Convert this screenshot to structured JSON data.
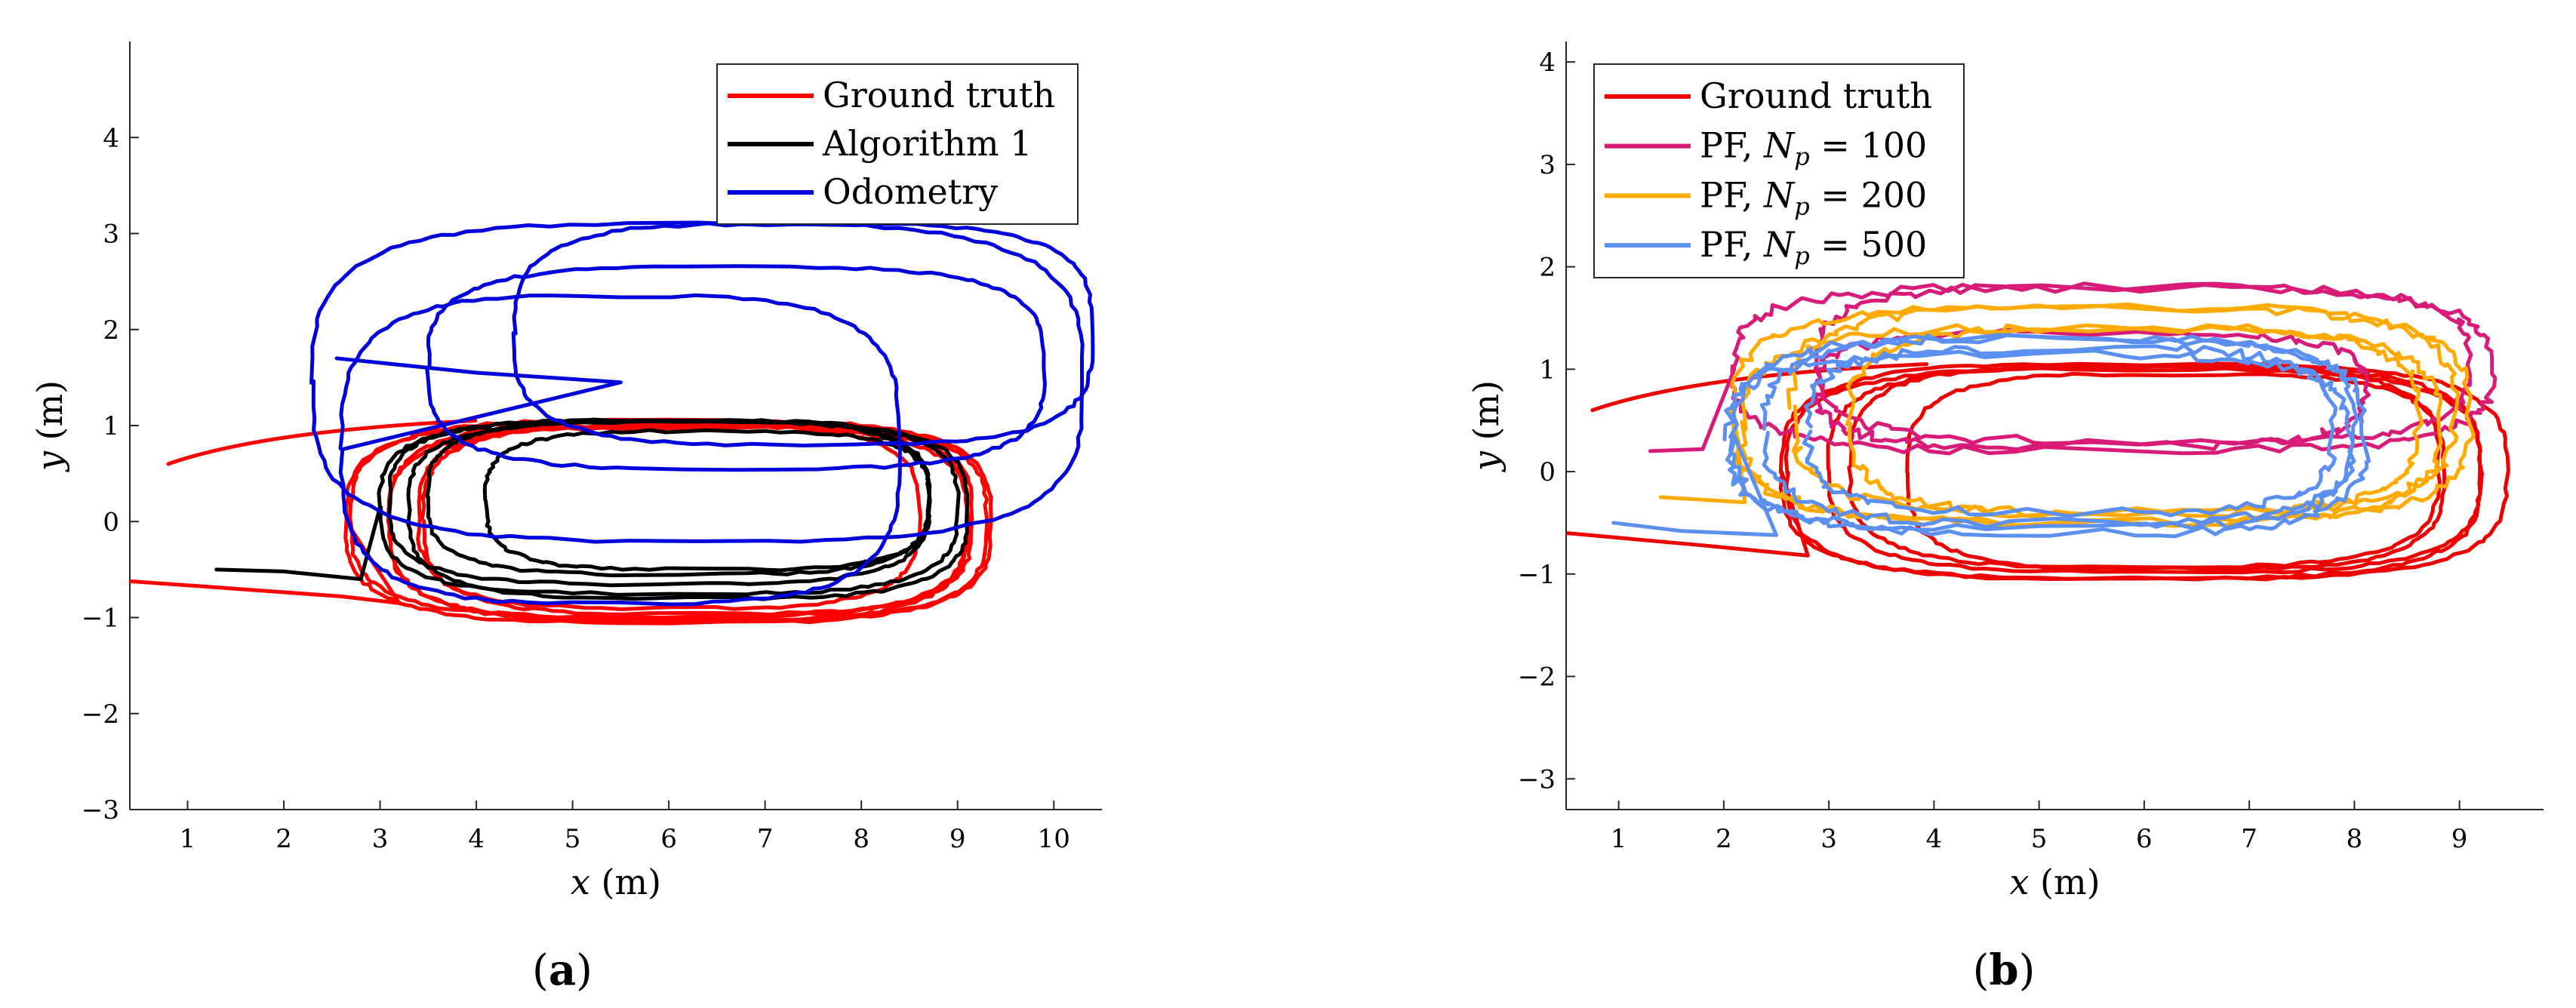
{
  "chart_data": [
    {
      "id": "a",
      "type": "line",
      "caption_letter": "a",
      "xlabel_var": "x",
      "xlabel_unit": " (m)",
      "ylabel_var": "y",
      "ylabel_unit": " (m)",
      "xlim": [
        0.4,
        10.5
      ],
      "ylim": [
        -3,
        5
      ],
      "xticks": [
        1,
        2,
        3,
        4,
        5,
        6,
        7,
        8,
        9,
        10
      ],
      "yticks": [
        -3,
        -2,
        -1,
        0,
        1,
        2,
        3,
        4
      ],
      "legend": {
        "position": "top-right"
      },
      "series": [
        {
          "name": "Ground truth",
          "name_parts": [
            "Ground truth"
          ],
          "color": "#ff0000",
          "entry": [
            [
              0.1,
              -0.6
            ],
            [
              1.5,
              -0.7
            ],
            [
              2.6,
              -0.78
            ],
            [
              3.2,
              -0.85
            ]
          ],
          "start": [
            0.8,
            0.6
          ],
          "loops": [
            {
              "cx": 6.0,
              "cy": 0.0,
              "rx": 3.35,
              "ry": 1.05
            },
            {
              "cx": 5.9,
              "cy": 0.03,
              "rx": 3.2,
              "ry": 1.02
            },
            {
              "cx": 6.2,
              "cy": 0.0,
              "rx": 3.1,
              "ry": 1.03
            },
            {
              "cx": 6.3,
              "cy": 0.02,
              "rx": 2.85,
              "ry": 0.98
            },
            {
              "cx": 6.0,
              "cy": 0.05,
              "rx": 2.6,
              "ry": 0.95
            },
            {
              "cx": 6.1,
              "cy": -0.02,
              "rx": 3.0,
              "ry": 1.0
            }
          ]
        },
        {
          "name": "Algorithm 1",
          "name_parts": [
            "Algorithm 1"
          ],
          "color": "#000000",
          "entry": [
            [
              1.3,
              -0.5
            ],
            [
              2.0,
              -0.52
            ],
            [
              2.8,
              -0.6
            ]
          ],
          "loops": [
            {
              "cx": 6.0,
              "cy": 0.15,
              "rx": 3.0,
              "ry": 0.9
            },
            {
              "cx": 5.9,
              "cy": 0.2,
              "rx": 2.8,
              "ry": 0.85
            },
            {
              "cx": 6.1,
              "cy": 0.25,
              "rx": 2.6,
              "ry": 0.8
            },
            {
              "cx": 6.2,
              "cy": 0.12,
              "rx": 2.9,
              "ry": 0.92
            },
            {
              "cx": 6.4,
              "cy": 0.22,
              "rx": 2.3,
              "ry": 0.72
            }
          ]
        },
        {
          "name": "Odometry",
          "name_parts": [
            "Odometry"
          ],
          "color": "#0000dd",
          "entry": [
            [
              2.55,
              1.7
            ],
            [
              4.0,
              1.55
            ],
            [
              5.5,
              1.45
            ]
          ],
          "loops": [
            {
              "cx": 5.5,
              "cy": 0.75,
              "rx": 2.9,
              "ry": 1.6
            },
            {
              "cx": 6.3,
              "cy": 1.45,
              "rx": 4.0,
              "ry": 1.65
            },
            {
              "cx": 7.4,
              "cy": 1.95,
              "rx": 3.0,
              "ry": 1.15
            },
            {
              "cx": 6.7,
              "cy": 1.6,
              "rx": 3.2,
              "ry": 1.05
            }
          ]
        }
      ]
    },
    {
      "id": "b",
      "type": "line",
      "caption_letter": "b",
      "xlabel_var": "x",
      "xlabel_unit": " (m)",
      "ylabel_var": "y",
      "ylabel_unit": " (m)",
      "xlim": [
        0.5,
        9.8
      ],
      "ylim": [
        -3.3,
        4.2
      ],
      "xticks": [
        1,
        2,
        3,
        4,
        5,
        6,
        7,
        8,
        9
      ],
      "yticks": [
        -3,
        -2,
        -1,
        0,
        1,
        2,
        3,
        4
      ],
      "legend": {
        "position": "top-left"
      },
      "series": [
        {
          "name": "Ground truth",
          "name_parts": [
            "Ground truth"
          ],
          "color": "#ee0000",
          "entry": [
            [
              0.5,
              -0.6
            ],
            [
              1.8,
              -0.72
            ],
            [
              2.8,
              -0.82
            ]
          ],
          "start": [
            0.75,
            0.6
          ],
          "loops": [
            {
              "cx": 6.0,
              "cy": 0.0,
              "rx": 3.45,
              "ry": 1.05
            },
            {
              "cx": 6.1,
              "cy": 0.02,
              "rx": 3.1,
              "ry": 1.0
            },
            {
              "cx": 6.0,
              "cy": 0.05,
              "rx": 2.8,
              "ry": 0.98
            },
            {
              "cx": 6.3,
              "cy": 0.0,
              "rx": 2.55,
              "ry": 0.95
            },
            {
              "cx": 5.9,
              "cy": -0.02,
              "rx": 3.3,
              "ry": 1.02
            }
          ]
        },
        {
          "name": "PF, Np = 100",
          "name_parts": [
            "PF, ",
            "N",
            "p",
            " = 100"
          ],
          "color": "#d81b78",
          "entry": [
            [
              1.3,
              0.2
            ],
            [
              1.8,
              0.22
            ]
          ],
          "loops": [
            {
              "cx": 5.7,
              "cy": 1.0,
              "rx": 3.6,
              "ry": 0.8
            },
            {
              "cx": 6.0,
              "cy": 1.05,
              "rx": 3.1,
              "ry": 0.75
            },
            {
              "cx": 5.5,
              "cy": 0.8,
              "rx": 2.6,
              "ry": 0.55
            }
          ]
        },
        {
          "name": "PF, Np = 200",
          "name_parts": [
            "PF, ",
            "N",
            "p",
            " = 200"
          ],
          "color": "#ffaa00",
          "entry": [
            [
              1.4,
              -0.25
            ],
            [
              2.2,
              -0.3
            ]
          ],
          "loops": [
            {
              "cx": 5.6,
              "cy": 0.55,
              "rx": 3.5,
              "ry": 1.05
            },
            {
              "cx": 5.8,
              "cy": 0.6,
              "rx": 3.15,
              "ry": 1.0
            },
            {
              "cx": 5.9,
              "cy": 0.5,
              "rx": 2.7,
              "ry": 0.9
            },
            {
              "cx": 5.5,
              "cy": 0.45,
              "rx": 3.3,
              "ry": 0.95
            }
          ]
        },
        {
          "name": "PF, Np = 500",
          "name_parts": [
            "PF, ",
            "N",
            "p",
            " = 500"
          ],
          "color": "#5b8ff0",
          "entry": [
            [
              0.95,
              -0.5
            ],
            [
              1.6,
              -0.58
            ],
            [
              2.5,
              -0.62
            ]
          ],
          "loops": [
            {
              "cx": 5.1,
              "cy": 0.35,
              "rx": 3.0,
              "ry": 0.95
            },
            {
              "cx": 5.2,
              "cy": 0.4,
              "rx": 2.8,
              "ry": 0.9
            },
            {
              "cx": 5.0,
              "cy": 0.3,
              "rx": 2.95,
              "ry": 0.85
            },
            {
              "cx": 5.3,
              "cy": 0.4,
              "rx": 2.5,
              "ry": 0.8
            }
          ]
        }
      ]
    }
  ]
}
